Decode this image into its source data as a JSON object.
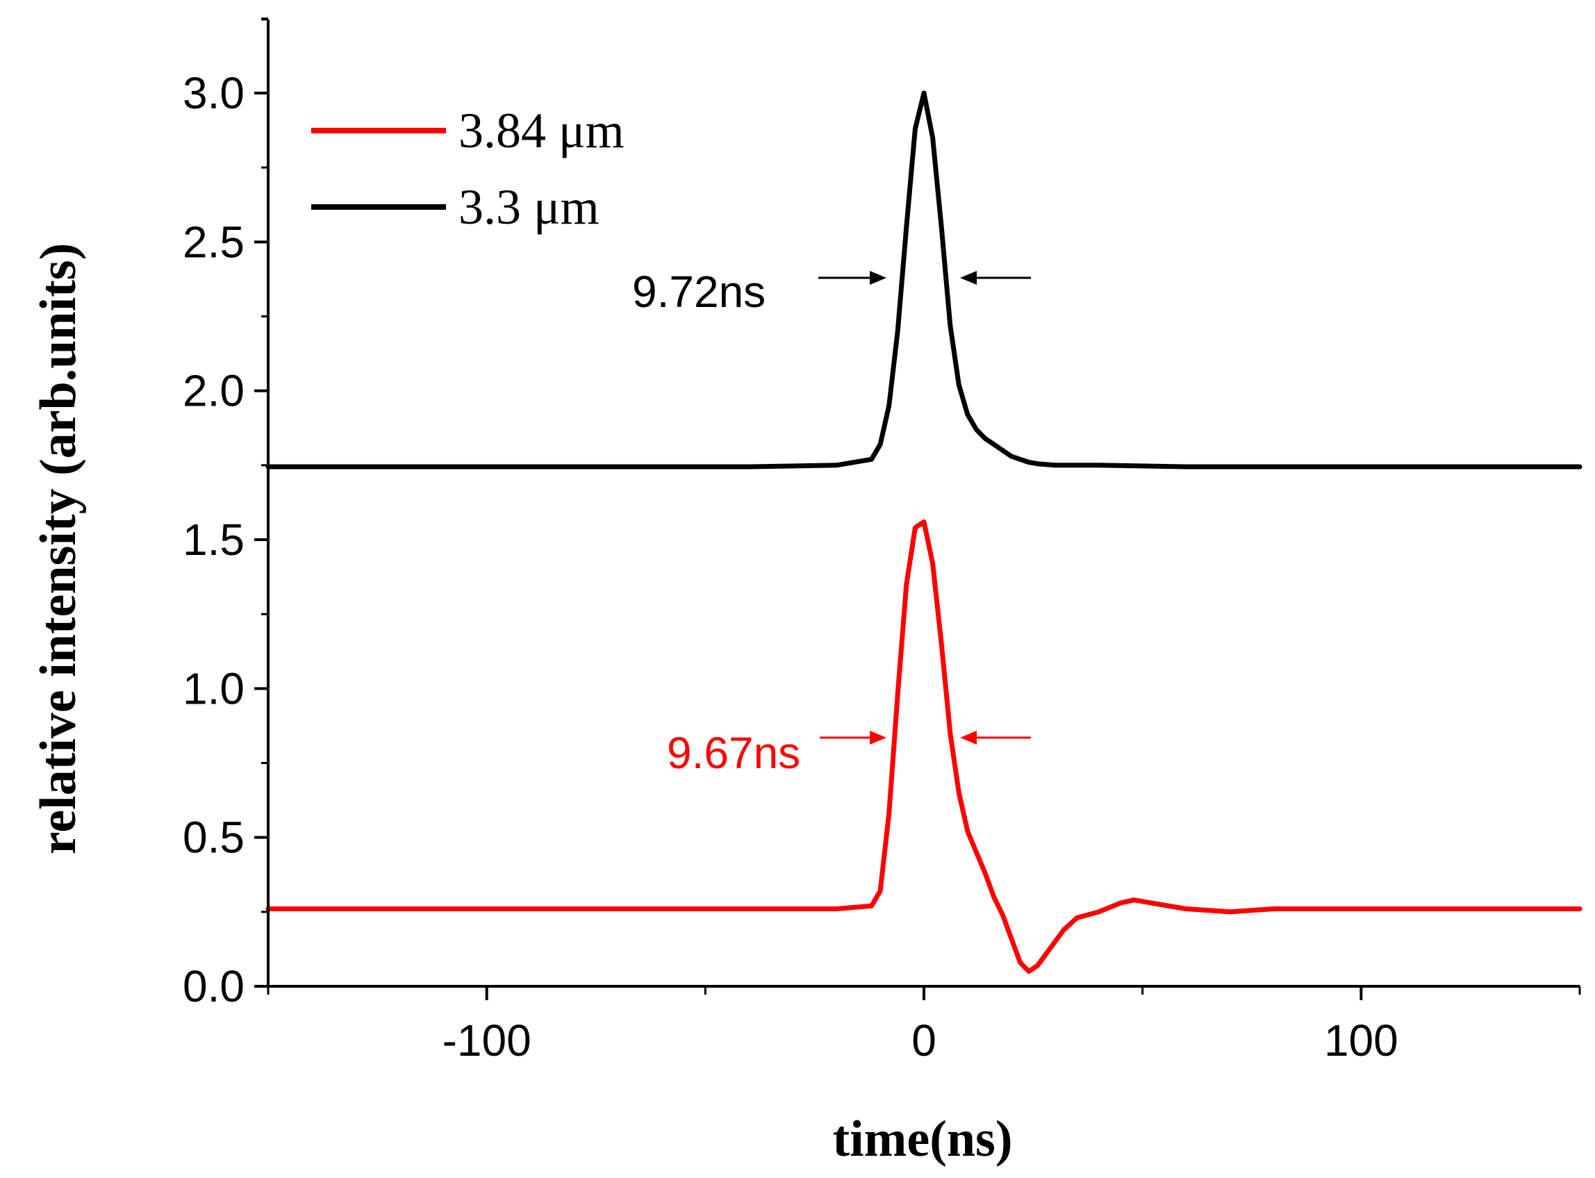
{
  "chart_data": {
    "type": "line",
    "title": "",
    "xlabel": "time(ns)",
    "ylabel": "relative intensity (arb.units)",
    "xlim": [
      -150,
      150
    ],
    "ylim": [
      0,
      3.25
    ],
    "xticks": [
      -100,
      0,
      100
    ],
    "xtick_labels": [
      "-100",
      "0",
      "100"
    ],
    "yticks": [
      0.0,
      0.5,
      1.0,
      1.5,
      2.0,
      2.5,
      3.0
    ],
    "ytick_labels": [
      "0.0",
      "0.5",
      "1.0",
      "1.5",
      "2.0",
      "2.5",
      "3.0"
    ],
    "grid": false,
    "legend_position": "top-left",
    "series": [
      {
        "name": "3.84 μm",
        "color": "#ff0000",
        "x": [
          -150,
          -120,
          -100,
          -80,
          -60,
          -40,
          -20,
          -12,
          -10,
          -8,
          -6,
          -4,
          -2,
          0,
          2,
          4,
          6,
          8,
          10,
          12,
          14,
          16,
          18,
          20,
          22,
          24,
          26,
          28,
          30,
          32,
          35,
          40,
          45,
          48,
          52,
          56,
          60,
          70,
          80,
          100,
          120,
          150
        ],
        "y": [
          0.26,
          0.26,
          0.26,
          0.26,
          0.26,
          0.26,
          0.26,
          0.27,
          0.32,
          0.58,
          0.98,
          1.35,
          1.54,
          1.56,
          1.42,
          1.15,
          0.85,
          0.65,
          0.52,
          0.45,
          0.38,
          0.3,
          0.24,
          0.16,
          0.08,
          0.05,
          0.07,
          0.11,
          0.15,
          0.19,
          0.23,
          0.25,
          0.28,
          0.29,
          0.28,
          0.27,
          0.26,
          0.25,
          0.26,
          0.26,
          0.26,
          0.26
        ]
      },
      {
        "name": "3.3 μm",
        "color": "#000000",
        "x": [
          -150,
          -120,
          -100,
          -80,
          -60,
          -40,
          -20,
          -12,
          -10,
          -8,
          -6,
          -4,
          -2,
          0,
          2,
          4,
          6,
          8,
          10,
          12,
          14,
          16,
          18,
          20,
          22,
          24,
          26,
          30,
          40,
          60,
          80,
          100,
          120,
          150
        ],
        "y": [
          1.745,
          1.745,
          1.745,
          1.745,
          1.745,
          1.745,
          1.75,
          1.77,
          1.82,
          1.95,
          2.2,
          2.55,
          2.88,
          3.0,
          2.85,
          2.55,
          2.22,
          2.02,
          1.92,
          1.87,
          1.84,
          1.82,
          1.8,
          1.78,
          1.77,
          1.76,
          1.755,
          1.75,
          1.75,
          1.745,
          1.745,
          1.745,
          1.745,
          1.745
        ]
      }
    ],
    "annotations": [
      {
        "text": "9.72ns",
        "color": "#000000"
      },
      {
        "text": "9.67ns",
        "color": "#ff0000"
      }
    ]
  }
}
